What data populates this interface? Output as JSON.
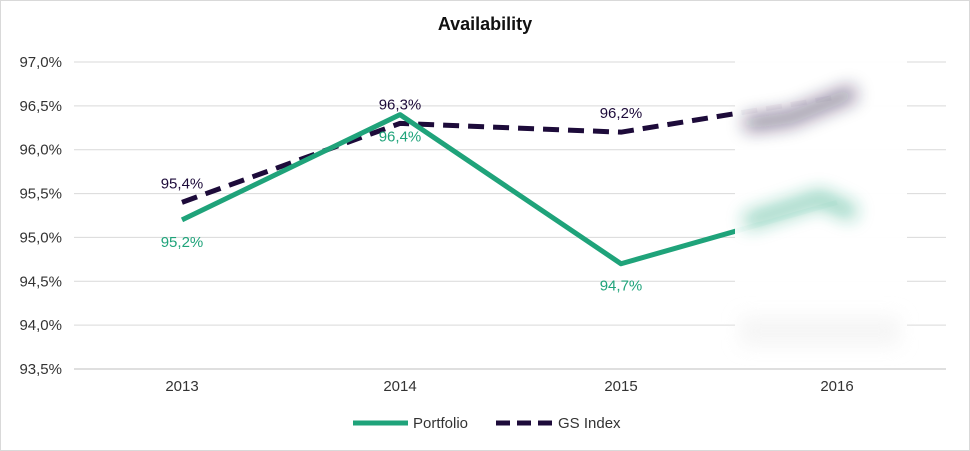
{
  "chart_data": {
    "type": "line",
    "title": "Availability",
    "categories": [
      "2013",
      "2014",
      "2015",
      "2016"
    ],
    "ylim": [
      93.5,
      97.0
    ],
    "yticks": [
      "93,5%",
      "94,0%",
      "94,5%",
      "95,0%",
      "95,5%",
      "96,0%",
      "96,5%",
      "97,0%"
    ],
    "ytick_values": [
      93.5,
      94.0,
      94.5,
      95.0,
      95.5,
      96.0,
      96.5,
      97.0
    ],
    "grid": true,
    "legend_position": "bottom",
    "series": [
      {
        "name": "Portfolio",
        "values": [
          95.2,
          96.4,
          94.7,
          95.4
        ],
        "labels": [
          "95,2%",
          "96,4%",
          "94,7%",
          null
        ],
        "color": "#1fa37a",
        "style": "solid"
      },
      {
        "name": "GS Index",
        "values": [
          95.4,
          96.3,
          96.2,
          96.6
        ],
        "labels": [
          "95,4%",
          "96,3%",
          "96,2%",
          null
        ],
        "color": "#1d0b3a",
        "style": "dashed"
      }
    ]
  }
}
